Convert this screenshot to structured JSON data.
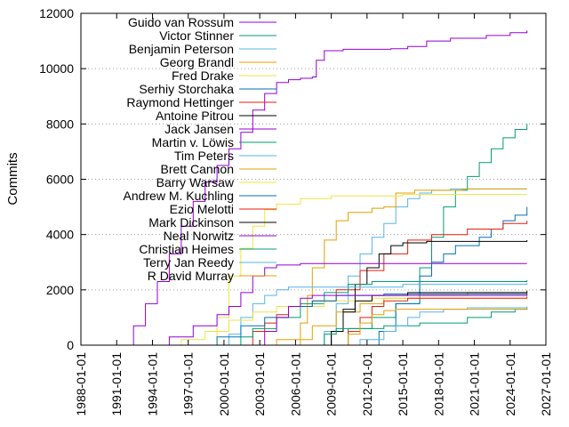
{
  "chart_data": {
    "type": "line",
    "title": "",
    "xlabel": "",
    "ylabel": "Commits",
    "xlim": [
      "1988-01-01",
      "2027-01-01"
    ],
    "ylim": [
      0,
      12000
    ],
    "x_ticks": [
      "1988-01-01",
      "1991-01-01",
      "1994-01-01",
      "1997-01-01",
      "2000-01-01",
      "2003-01-01",
      "2006-01-01",
      "2009-01-01",
      "2012-01-01",
      "2015-01-01",
      "2018-01-01",
      "2021-01-01",
      "2024-01-01",
      "2027-01-01"
    ],
    "y_ticks": [
      0,
      2000,
      4000,
      6000,
      8000,
      10000,
      12000
    ],
    "grid": true,
    "legend_position": "top-left",
    "series": [
      {
        "name": "Guido van Rossum",
        "color": "#9400d3",
        "points": [
          [
            "1990-08-01",
            0
          ],
          [
            "1992-06-01",
            700
          ],
          [
            "1993-06-01",
            1500
          ],
          [
            "1994-06-01",
            2300
          ],
          [
            "1995-06-01",
            3300
          ],
          [
            "1996-06-01",
            4300
          ],
          [
            "1997-06-01",
            5200
          ],
          [
            "1998-06-01",
            5900
          ],
          [
            "1999-06-01",
            6500
          ],
          [
            "2000-06-01",
            7100
          ],
          [
            "2001-06-01",
            7700
          ],
          [
            "2002-06-01",
            8500
          ],
          [
            "2003-06-01",
            9100
          ],
          [
            "2004-06-01",
            9500
          ],
          [
            "2005-06-01",
            9600
          ],
          [
            "2006-06-01",
            9650
          ],
          [
            "2007-06-01",
            9700
          ],
          [
            "2007-10-01",
            10300
          ],
          [
            "2008-06-01",
            10650
          ],
          [
            "2010-01-01",
            10700
          ],
          [
            "2014-01-01",
            10720
          ],
          [
            "2015-06-01",
            10800
          ],
          [
            "2017-01-01",
            11000
          ],
          [
            "2019-01-01",
            11100
          ],
          [
            "2022-01-01",
            11200
          ],
          [
            "2024-01-01",
            11300
          ],
          [
            "2025-06-01",
            11380
          ]
        ]
      },
      {
        "name": "Victor Stinner",
        "color": "#009e73",
        "points": [
          [
            "2008-01-01",
            0
          ],
          [
            "2010-06-01",
            600
          ],
          [
            "2012-06-01",
            1000
          ],
          [
            "2014-06-01",
            1500
          ],
          [
            "2016-06-01",
            2800
          ],
          [
            "2017-06-01",
            3900
          ],
          [
            "2018-06-01",
            5000
          ],
          [
            "2019-06-01",
            5600
          ],
          [
            "2020-06-01",
            6100
          ],
          [
            "2021-06-01",
            6600
          ],
          [
            "2022-06-01",
            7100
          ],
          [
            "2023-06-01",
            7500
          ],
          [
            "2024-06-01",
            7800
          ],
          [
            "2025-06-01",
            8000
          ]
        ]
      },
      {
        "name": "Benjamin Peterson",
        "color": "#56b4e9",
        "points": [
          [
            "2008-01-01",
            0
          ],
          [
            "2008-06-01",
            500
          ],
          [
            "2009-06-01",
            1500
          ],
          [
            "2010-06-01",
            2500
          ],
          [
            "2011-06-01",
            3300
          ],
          [
            "2012-06-01",
            3900
          ],
          [
            "2013-06-01",
            4400
          ],
          [
            "2014-06-01",
            5000
          ],
          [
            "2015-06-01",
            5300
          ],
          [
            "2016-06-01",
            5500
          ],
          [
            "2017-06-01",
            5600
          ],
          [
            "2019-01-01",
            5650
          ],
          [
            "2022-01-01",
            5650
          ],
          [
            "2025-06-01",
            5650
          ]
        ]
      },
      {
        "name": "Georg Brandl",
        "color": "#e69f00",
        "points": [
          [
            "2005-06-01",
            0
          ],
          [
            "2006-06-01",
            800
          ],
          [
            "2007-01-01",
            1800
          ],
          [
            "2007-06-01",
            2800
          ],
          [
            "2008-06-01",
            3800
          ],
          [
            "2009-06-01",
            4500
          ],
          [
            "2010-06-01",
            4800
          ],
          [
            "2012-06-01",
            4950
          ],
          [
            "2013-06-01",
            5000
          ],
          [
            "2014-06-01",
            5500
          ],
          [
            "2016-01-01",
            5600
          ],
          [
            "2020-01-01",
            5650
          ],
          [
            "2025-06-01",
            5650
          ]
        ]
      },
      {
        "name": "Fred Drake",
        "color": "#f0e442",
        "points": [
          [
            "1998-01-01",
            0
          ],
          [
            "1999-06-01",
            1000
          ],
          [
            "2000-06-01",
            2500
          ],
          [
            "2001-06-01",
            3500
          ],
          [
            "2002-06-01",
            4300
          ],
          [
            "2003-06-01",
            4900
          ],
          [
            "2004-06-01",
            5100
          ],
          [
            "2006-06-01",
            5300
          ],
          [
            "2009-01-01",
            5400
          ],
          [
            "2015-01-01",
            5450
          ],
          [
            "2025-06-01",
            5450
          ]
        ]
      },
      {
        "name": "Serhiy Storchaka",
        "color": "#0072b2",
        "points": [
          [
            "2012-06-01",
            0
          ],
          [
            "2013-01-01",
            500
          ],
          [
            "2014-06-01",
            1500
          ],
          [
            "2016-06-01",
            2500
          ],
          [
            "2017-06-01",
            3000
          ],
          [
            "2018-06-01",
            3300
          ],
          [
            "2019-06-01",
            3600
          ],
          [
            "2021-06-01",
            3900
          ],
          [
            "2022-06-01",
            4200
          ],
          [
            "2023-06-01",
            4500
          ],
          [
            "2024-06-01",
            4700
          ],
          [
            "2025-06-01",
            5000
          ]
        ]
      },
      {
        "name": "Raymond Hettinger",
        "color": "#e51e10",
        "points": [
          [
            "2001-06-01",
            0
          ],
          [
            "2002-06-01",
            500
          ],
          [
            "2003-06-01",
            800
          ],
          [
            "2004-06-01",
            1100
          ],
          [
            "2005-06-01",
            1400
          ],
          [
            "2007-06-01",
            1600
          ],
          [
            "2009-06-01",
            2000
          ],
          [
            "2011-06-01",
            2700
          ],
          [
            "2013-06-01",
            3300
          ],
          [
            "2015-06-01",
            3800
          ],
          [
            "2017-06-01",
            4000
          ],
          [
            "2020-06-01",
            4200
          ],
          [
            "2023-06-01",
            4400
          ],
          [
            "2025-06-01",
            4500
          ]
        ]
      },
      {
        "name": "Antoine Pitrou",
        "color": "#000000",
        "points": [
          [
            "2008-01-01",
            0
          ],
          [
            "2009-01-01",
            500
          ],
          [
            "2010-01-01",
            1300
          ],
          [
            "2011-01-01",
            2200
          ],
          [
            "2012-01-01",
            2800
          ],
          [
            "2013-01-01",
            3300
          ],
          [
            "2014-01-01",
            3600
          ],
          [
            "2015-01-01",
            3700
          ],
          [
            "2017-01-01",
            3750
          ],
          [
            "2025-06-01",
            3800
          ]
        ]
      },
      {
        "name": "Jack Jansen",
        "color": "#9400d3",
        "points": [
          [
            "1994-01-01",
            0
          ],
          [
            "1995-06-01",
            300
          ],
          [
            "1997-06-01",
            700
          ],
          [
            "1999-06-01",
            1100
          ],
          [
            "2000-06-01",
            1400
          ],
          [
            "2001-06-01",
            1900
          ],
          [
            "2002-06-01",
            2500
          ],
          [
            "2003-06-01",
            2800
          ],
          [
            "2004-06-01",
            2900
          ],
          [
            "2006-06-01",
            2950
          ],
          [
            "2025-06-01",
            2950
          ]
        ]
      },
      {
        "name": "Martin v. Löwis",
        "color": "#009e73",
        "points": [
          [
            "2000-06-01",
            0
          ],
          [
            "2001-06-01",
            300
          ],
          [
            "2002-06-01",
            600
          ],
          [
            "2004-06-01",
            1000
          ],
          [
            "2006-06-01",
            1500
          ],
          [
            "2008-06-01",
            1900
          ],
          [
            "2010-06-01",
            2200
          ],
          [
            "2012-06-01",
            2300
          ],
          [
            "2025-06-01",
            2350
          ]
        ]
      },
      {
        "name": "Tim Peters",
        "color": "#56b4e9",
        "points": [
          [
            "1999-06-01",
            0
          ],
          [
            "2000-06-01",
            400
          ],
          [
            "2001-06-01",
            1000
          ],
          [
            "2002-06-01",
            1500
          ],
          [
            "2003-06-01",
            1800
          ],
          [
            "2004-06-01",
            2000
          ],
          [
            "2005-06-01",
            2100
          ],
          [
            "2015-01-01",
            2200
          ],
          [
            "2025-06-01",
            2250
          ]
        ]
      },
      {
        "name": "Brett Cannon",
        "color": "#e69f00",
        "points": [
          [
            "2003-01-01",
            0
          ],
          [
            "2004-06-01",
            200
          ],
          [
            "2007-06-01",
            700
          ],
          [
            "2009-06-01",
            1200
          ],
          [
            "2011-06-01",
            1500
          ],
          [
            "2013-06-01",
            1700
          ],
          [
            "2016-06-01",
            1800
          ],
          [
            "2020-06-01",
            1900
          ],
          [
            "2025-06-01",
            2000
          ]
        ]
      },
      {
        "name": "Barry Warsaw",
        "color": "#f0e442",
        "points": [
          [
            "1994-06-01",
            0
          ],
          [
            "1996-06-01",
            200
          ],
          [
            "1998-06-01",
            500
          ],
          [
            "2000-06-01",
            900
          ],
          [
            "2002-06-01",
            1200
          ],
          [
            "2004-06-01",
            1400
          ],
          [
            "2008-06-01",
            1600
          ],
          [
            "2012-06-01",
            1700
          ],
          [
            "2025-06-01",
            1800
          ]
        ]
      },
      {
        "name": "Andrew M. Kuchling",
        "color": "#0072b2",
        "points": [
          [
            "1997-06-01",
            0
          ],
          [
            "1999-06-01",
            300
          ],
          [
            "2001-06-01",
            700
          ],
          [
            "2003-06-01",
            1000
          ],
          [
            "2005-06-01",
            1400
          ],
          [
            "2007-06-01",
            1600
          ],
          [
            "2009-06-01",
            1800
          ],
          [
            "2013-06-01",
            1850
          ],
          [
            "2025-06-01",
            1900
          ]
        ]
      },
      {
        "name": "Ezio Melotti",
        "color": "#e51e10",
        "points": [
          [
            "2009-01-01",
            0
          ],
          [
            "2010-06-01",
            500
          ],
          [
            "2011-06-01",
            1000
          ],
          [
            "2012-06-01",
            1400
          ],
          [
            "2013-06-01",
            1600
          ],
          [
            "2015-06-01",
            1700
          ],
          [
            "2025-06-01",
            1750
          ]
        ]
      },
      {
        "name": "Mark Dickinson",
        "color": "#000000",
        "points": [
          [
            "2008-01-01",
            0
          ],
          [
            "2009-01-01",
            500
          ],
          [
            "2010-01-01",
            1200
          ],
          [
            "2011-01-01",
            1600
          ],
          [
            "2012-06-01",
            1800
          ],
          [
            "2015-06-01",
            1900
          ],
          [
            "2025-06-01",
            1950
          ]
        ]
      },
      {
        "name": "Neal Norwitz",
        "color": "#9400d3",
        "points": [
          [
            "2002-06-01",
            0
          ],
          [
            "2003-06-01",
            500
          ],
          [
            "2004-06-01",
            1000
          ],
          [
            "2005-06-01",
            1400
          ],
          [
            "2006-06-01",
            1700
          ],
          [
            "2007-06-01",
            1800
          ],
          [
            "2025-06-01",
            1850
          ]
        ]
      },
      {
        "name": "Christian Heimes",
        "color": "#009e73",
        "points": [
          [
            "2007-06-01",
            0
          ],
          [
            "2008-06-01",
            400
          ],
          [
            "2009-06-01",
            600
          ],
          [
            "2013-06-01",
            700
          ],
          [
            "2016-06-01",
            800
          ],
          [
            "2020-06-01",
            1000
          ],
          [
            "2022-06-01",
            1200
          ],
          [
            "2024-06-01",
            1300
          ],
          [
            "2025-06-01",
            1350
          ]
        ]
      },
      {
        "name": "Terry Jan Reedy",
        "color": "#56b4e9",
        "points": [
          [
            "2010-06-01",
            0
          ],
          [
            "2011-06-01",
            200
          ],
          [
            "2013-06-01",
            500
          ],
          [
            "2014-06-01",
            700
          ],
          [
            "2015-06-01",
            1000
          ],
          [
            "2016-06-01",
            1200
          ],
          [
            "2018-06-01",
            1300
          ],
          [
            "2020-06-01",
            1350
          ],
          [
            "2025-06-01",
            1400
          ]
        ]
      },
      {
        "name": "R David Murray",
        "color": "#e69f00",
        "points": [
          [
            "2009-06-01",
            0
          ],
          [
            "2010-06-01",
            400
          ],
          [
            "2011-06-01",
            800
          ],
          [
            "2012-06-01",
            1100
          ],
          [
            "2013-06-01",
            1250
          ],
          [
            "2014-06-01",
            1300
          ],
          [
            "2025-06-01",
            1350
          ]
        ]
      }
    ]
  }
}
